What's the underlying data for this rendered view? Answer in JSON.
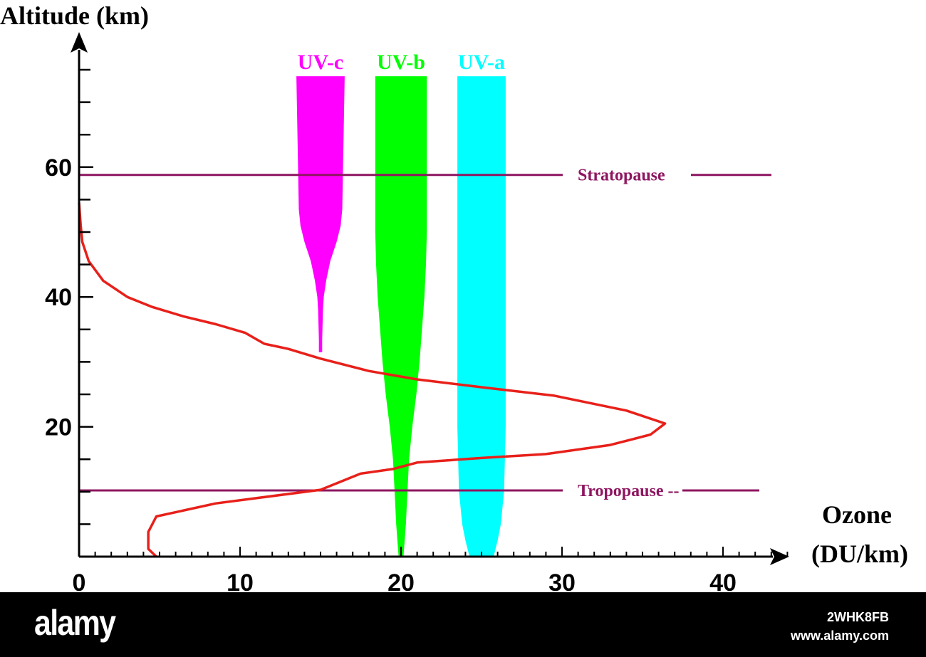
{
  "chart_data": {
    "type": "line",
    "ylabel": "Altitude (km)",
    "xlabel_line1": "Ozone",
    "xlabel_line2": "(DU/km)",
    "xlim": [
      0,
      44
    ],
    "ylim": [
      0,
      78
    ],
    "x_ticks": [
      0,
      10,
      20,
      30,
      40
    ],
    "y_ticks": [
      20,
      40,
      60
    ],
    "x_minor_step": 1,
    "y_minor_step": 5,
    "ozone_profile": {
      "color": "#e8201a",
      "points": [
        [
          4.8,
          0.0
        ],
        [
          4.3,
          1.2
        ],
        [
          4.3,
          3.8
        ],
        [
          4.8,
          6.2
        ],
        [
          8.5,
          8.2
        ],
        [
          15.0,
          10.3
        ],
        [
          17.5,
          12.8
        ],
        [
          19.5,
          13.5
        ],
        [
          21.0,
          14.5
        ],
        [
          25.0,
          15.2
        ],
        [
          29.0,
          15.8
        ],
        [
          33.0,
          17.2
        ],
        [
          35.5,
          18.8
        ],
        [
          36.4,
          20.5
        ],
        [
          34.0,
          22.5
        ],
        [
          29.5,
          24.8
        ],
        [
          25.0,
          26.1
        ],
        [
          21.0,
          27.3
        ],
        [
          18.0,
          28.6
        ],
        [
          15.0,
          30.5
        ],
        [
          13.0,
          32.0
        ],
        [
          11.5,
          32.8
        ],
        [
          10.3,
          34.5
        ],
        [
          8.5,
          35.8
        ],
        [
          6.5,
          37.0
        ],
        [
          4.5,
          38.5
        ],
        [
          3.0,
          40.0
        ],
        [
          1.5,
          42.5
        ],
        [
          0.6,
          45.5
        ],
        [
          0.2,
          48.5
        ],
        [
          0.1,
          51.0
        ],
        [
          0.0,
          54.5
        ]
      ]
    },
    "levels": [
      {
        "name": "Stratopause",
        "altitude": 58.8,
        "color": "#8e1660"
      },
      {
        "name": "Tropopause --",
        "altitude": 10.2,
        "color": "#8e1660"
      }
    ],
    "uv_bands": [
      {
        "name": "UV-c",
        "color": "#ff00ff",
        "center": 15.0,
        "half_widths": [
          [
            31.5,
            0.1
          ],
          [
            33.5,
            0.1
          ],
          [
            38.0,
            0.15
          ],
          [
            40.0,
            0.2
          ],
          [
            42.5,
            0.35
          ],
          [
            45.5,
            0.6
          ],
          [
            48.5,
            1.0
          ],
          [
            51.0,
            1.25
          ],
          [
            53.5,
            1.35
          ],
          [
            74.0,
            1.5
          ]
        ]
      },
      {
        "name": "UV-b",
        "color": "#00ff00",
        "center": 20.0,
        "half_widths": [
          [
            0.0,
            0.15
          ],
          [
            5.0,
            0.3
          ],
          [
            10.0,
            0.4
          ],
          [
            15.0,
            0.5
          ],
          [
            20.0,
            0.7
          ],
          [
            25.0,
            0.95
          ],
          [
            30.0,
            1.15
          ],
          [
            35.0,
            1.3
          ],
          [
            40.0,
            1.45
          ],
          [
            45.0,
            1.55
          ],
          [
            50.0,
            1.6
          ],
          [
            55.0,
            1.6
          ],
          [
            74.0,
            1.6
          ]
        ]
      },
      {
        "name": "UV-a",
        "color": "#00ffff",
        "center": 25.0,
        "half_widths": [
          [
            0.0,
            0.75
          ],
          [
            2.5,
            1.0
          ],
          [
            5.0,
            1.2
          ],
          [
            10.0,
            1.4
          ],
          [
            15.0,
            1.45
          ],
          [
            20.0,
            1.5
          ],
          [
            74.0,
            1.5
          ]
        ]
      }
    ]
  },
  "footer": {
    "logo": "alamy",
    "image_id": "2WHK8FB",
    "site": "www.alamy.com"
  },
  "colors": {
    "axis": "#000000",
    "background": "#ffffff",
    "footer": "#000000"
  }
}
